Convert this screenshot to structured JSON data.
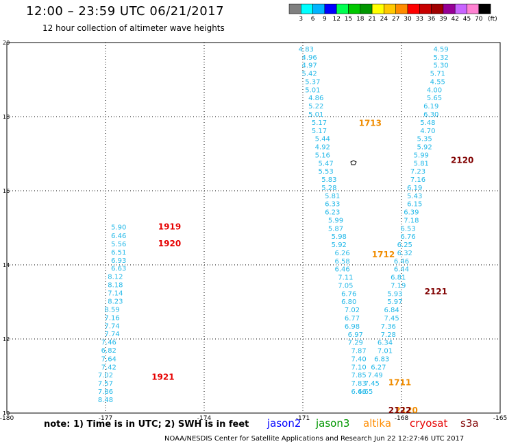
{
  "header": {
    "title": "12:00 – 23:59 UTC 06/21/2017",
    "subtitle": "12 hour collection of altimeter wave heights"
  },
  "colorbar": {
    "unit": "(ft)",
    "colors": [
      "#808080",
      "#00ffff",
      "#00b4ff",
      "#0000ff",
      "#00ff50",
      "#00c800",
      "#009600",
      "#ffff00",
      "#ffc800",
      "#ff8c00",
      "#ff0000",
      "#c80000",
      "#a00000",
      "#960096",
      "#c864ff",
      "#ff82d2",
      "#000000"
    ],
    "labels": [
      "3",
      "6",
      "9",
      "12",
      "15",
      "18",
      "21",
      "24",
      "27",
      "30",
      "33",
      "36",
      "39",
      "42",
      "45",
      "70"
    ]
  },
  "chart_data": {
    "type": "scatter",
    "xlim": [
      -180,
      -165
    ],
    "ylim": [
      10,
      20
    ],
    "x_ticks": [
      "-180",
      "-177",
      "-174",
      "-171",
      "-168",
      "-165"
    ],
    "y_ticks": [
      "10",
      "12",
      "14",
      "16",
      "18",
      "20"
    ],
    "grid": true,
    "series": [
      {
        "name": "cryosat",
        "color": "#22b8e8",
        "points": [
          {
            "x": -176.6,
            "y": 14.95,
            "v": "5.90"
          },
          {
            "x": -176.6,
            "y": 14.72,
            "v": "6.46"
          },
          {
            "x": -176.6,
            "y": 14.5,
            "v": "5.56"
          },
          {
            "x": -176.6,
            "y": 14.28,
            "v": "6.51"
          },
          {
            "x": -176.6,
            "y": 14.06,
            "v": "6.93"
          },
          {
            "x": -176.6,
            "y": 13.84,
            "v": "6.63"
          },
          {
            "x": -176.7,
            "y": 13.62,
            "v": "8.12"
          },
          {
            "x": -176.7,
            "y": 13.4,
            "v": "8.18"
          },
          {
            "x": -176.7,
            "y": 13.18,
            "v": "7.14"
          },
          {
            "x": -176.7,
            "y": 12.95,
            "v": "8.23"
          },
          {
            "x": -176.8,
            "y": 12.73,
            "v": "8.59"
          },
          {
            "x": -176.8,
            "y": 12.51,
            "v": "7.16"
          },
          {
            "x": -176.8,
            "y": 12.29,
            "v": "7.74"
          },
          {
            "x": -176.8,
            "y": 12.07,
            "v": "7.74"
          },
          {
            "x": -176.9,
            "y": 11.85,
            "v": "7.46"
          },
          {
            "x": -176.9,
            "y": 11.63,
            "v": "6.82"
          },
          {
            "x": -176.9,
            "y": 11.4,
            "v": "7.64"
          },
          {
            "x": -176.9,
            "y": 11.18,
            "v": "7.42"
          },
          {
            "x": -177.0,
            "y": 10.96,
            "v": "7.02"
          },
          {
            "x": -177.0,
            "y": 10.74,
            "v": "7.57"
          },
          {
            "x": -177.0,
            "y": 10.52,
            "v": "7.86"
          },
          {
            "x": -177.0,
            "y": 10.3,
            "v": "8.48"
          },
          {
            "x": -170.9,
            "y": 19.76,
            "v": "4.83"
          },
          {
            "x": -170.8,
            "y": 19.54,
            "v": "4.96"
          },
          {
            "x": -170.8,
            "y": 19.32,
            "v": "4.97"
          },
          {
            "x": -170.8,
            "y": 19.1,
            "v": "5.42"
          },
          {
            "x": -170.7,
            "y": 18.88,
            "v": "5.37"
          },
          {
            "x": -170.7,
            "y": 18.66,
            "v": "5.01"
          },
          {
            "x": -170.6,
            "y": 18.44,
            "v": "4.86"
          },
          {
            "x": -170.6,
            "y": 18.22,
            "v": "5.22"
          },
          {
            "x": -170.6,
            "y": 18.0,
            "v": "5.01"
          },
          {
            "x": -170.5,
            "y": 17.78,
            "v": "5.17"
          },
          {
            "x": -170.5,
            "y": 17.56,
            "v": "5.17"
          },
          {
            "x": -170.4,
            "y": 17.34,
            "v": "5.44"
          },
          {
            "x": -170.4,
            "y": 17.12,
            "v": "4.92"
          },
          {
            "x": -170.4,
            "y": 16.9,
            "v": "5.16"
          },
          {
            "x": -170.3,
            "y": 16.68,
            "v": "5.47"
          },
          {
            "x": -170.3,
            "y": 16.46,
            "v": "5.53"
          },
          {
            "x": -170.2,
            "y": 16.24,
            "v": "5.83"
          },
          {
            "x": -170.2,
            "y": 16.02,
            "v": "5.28"
          },
          {
            "x": -170.1,
            "y": 15.8,
            "v": "5.81"
          },
          {
            "x": -170.1,
            "y": 15.58,
            "v": "6.33"
          },
          {
            "x": -170.1,
            "y": 15.36,
            "v": "6.23"
          },
          {
            "x": -170.0,
            "y": 15.14,
            "v": "5.99"
          },
          {
            "x": -170.0,
            "y": 14.92,
            "v": "5.87"
          },
          {
            "x": -169.9,
            "y": 14.7,
            "v": "5.98"
          },
          {
            "x": -169.9,
            "y": 14.48,
            "v": "5.92"
          },
          {
            "x": -169.8,
            "y": 14.26,
            "v": "6.26"
          },
          {
            "x": -169.8,
            "y": 14.04,
            "v": "6.58"
          },
          {
            "x": -169.8,
            "y": 13.82,
            "v": "6.46"
          },
          {
            "x": -169.7,
            "y": 13.6,
            "v": "7.11"
          },
          {
            "x": -169.7,
            "y": 13.38,
            "v": "7.05"
          },
          {
            "x": -169.6,
            "y": 13.16,
            "v": "6.76"
          },
          {
            "x": -169.6,
            "y": 12.94,
            "v": "6.80"
          },
          {
            "x": -169.5,
            "y": 12.72,
            "v": "7.02"
          },
          {
            "x": -169.5,
            "y": 12.5,
            "v": "6.77"
          },
          {
            "x": -169.5,
            "y": 12.28,
            "v": "6.98"
          },
          {
            "x": -169.4,
            "y": 12.06,
            "v": "6.97"
          },
          {
            "x": -169.4,
            "y": 11.84,
            "v": "7.29"
          },
          {
            "x": -169.3,
            "y": 11.62,
            "v": "7.87"
          },
          {
            "x": -169.3,
            "y": 11.4,
            "v": "7.40"
          },
          {
            "x": -169.3,
            "y": 11.18,
            "v": "7.10"
          },
          {
            "x": -169.3,
            "y": 10.96,
            "v": "7.85"
          },
          {
            "x": -169.3,
            "y": 10.74,
            "v": "7.83"
          },
          {
            "x": -169.3,
            "y": 10.52,
            "v": "6.46"
          },
          {
            "x": -169.1,
            "y": 10.52,
            "v": "6.65"
          },
          {
            "x": -166.8,
            "y": 19.76,
            "v": "4.59"
          },
          {
            "x": -166.8,
            "y": 19.54,
            "v": "5.32"
          },
          {
            "x": -166.8,
            "y": 19.32,
            "v": "5.30"
          },
          {
            "x": -166.9,
            "y": 19.1,
            "v": "5.71"
          },
          {
            "x": -166.9,
            "y": 18.88,
            "v": "4.55"
          },
          {
            "x": -167.0,
            "y": 18.66,
            "v": "4.00"
          },
          {
            "x": -167.0,
            "y": 18.44,
            "v": "5.65"
          },
          {
            "x": -167.1,
            "y": 18.22,
            "v": "6.19"
          },
          {
            "x": -167.1,
            "y": 18.0,
            "v": "6.30"
          },
          {
            "x": -167.2,
            "y": 17.78,
            "v": "5.48"
          },
          {
            "x": -167.2,
            "y": 17.56,
            "v": "4.70"
          },
          {
            "x": -167.3,
            "y": 17.34,
            "v": "5.35"
          },
          {
            "x": -167.3,
            "y": 17.12,
            "v": "5.92"
          },
          {
            "x": -167.4,
            "y": 16.9,
            "v": "5.99"
          },
          {
            "x": -167.4,
            "y": 16.68,
            "v": "5.81"
          },
          {
            "x": -167.5,
            "y": 16.46,
            "v": "7.23"
          },
          {
            "x": -167.5,
            "y": 16.24,
            "v": "7.16"
          },
          {
            "x": -167.6,
            "y": 16.02,
            "v": "6.19"
          },
          {
            "x": -167.6,
            "y": 15.8,
            "v": "5.43"
          },
          {
            "x": -167.6,
            "y": 15.58,
            "v": "6.15"
          },
          {
            "x": -167.7,
            "y": 15.36,
            "v": "6.39"
          },
          {
            "x": -167.7,
            "y": 15.14,
            "v": "7.18"
          },
          {
            "x": -167.8,
            "y": 14.92,
            "v": "6.53"
          },
          {
            "x": -167.8,
            "y": 14.7,
            "v": "6.76"
          },
          {
            "x": -167.9,
            "y": 14.48,
            "v": "6.25"
          },
          {
            "x": -167.9,
            "y": 14.26,
            "v": "6.32"
          },
          {
            "x": -168.0,
            "y": 14.04,
            "v": "6.46"
          },
          {
            "x": -168.0,
            "y": 13.82,
            "v": "6.44"
          },
          {
            "x": -168.1,
            "y": 13.6,
            "v": "6.81"
          },
          {
            "x": -168.1,
            "y": 13.38,
            "v": "7.19"
          },
          {
            "x": -168.2,
            "y": 13.16,
            "v": "5.93"
          },
          {
            "x": -168.2,
            "y": 12.94,
            "v": "5.97"
          },
          {
            "x": -168.3,
            "y": 12.72,
            "v": "6.84"
          },
          {
            "x": -168.3,
            "y": 12.5,
            "v": "7.45"
          },
          {
            "x": -168.4,
            "y": 12.28,
            "v": "7.36"
          },
          {
            "x": -168.4,
            "y": 12.06,
            "v": "7.28"
          },
          {
            "x": -168.5,
            "y": 11.84,
            "v": "6.34"
          },
          {
            "x": -168.5,
            "y": 11.62,
            "v": "7.01"
          },
          {
            "x": -168.6,
            "y": 11.4,
            "v": "6.83"
          },
          {
            "x": -168.7,
            "y": 11.18,
            "v": "6.27"
          },
          {
            "x": -168.8,
            "y": 10.96,
            "v": "7.49"
          },
          {
            "x": -168.9,
            "y": 10.74,
            "v": "7.45"
          }
        ]
      }
    ],
    "time_labels": [
      {
        "x": -175.4,
        "y": 14.95,
        "text": "1919",
        "color": "#e60000"
      },
      {
        "x": -175.4,
        "y": 14.5,
        "text": "1920",
        "color": "#e60000"
      },
      {
        "x": -175.6,
        "y": 10.9,
        "text": "1921",
        "color": "#e60000"
      },
      {
        "x": -169.3,
        "y": 17.75,
        "text": "1713",
        "color": "#f08c00"
      },
      {
        "x": -168.9,
        "y": 14.2,
        "text": "1712",
        "color": "#f08c00"
      },
      {
        "x": -168.4,
        "y": 10.75,
        "text": "1711",
        "color": "#f08c00"
      },
      {
        "x": -168.2,
        "y": 10.0,
        "text": "2120",
        "color": "#f08c00"
      },
      {
        "x": -168.4,
        "y": 10.0,
        "text": "2122",
        "color": "#800000"
      },
      {
        "x": -166.5,
        "y": 16.75,
        "text": "2120",
        "color": "#800000"
      },
      {
        "x": -167.3,
        "y": 13.2,
        "text": "2121",
        "color": "#800000"
      }
    ]
  },
  "footer": {
    "note": "note:  1) Time is in UTC;  2) SWH is in feet",
    "missions": [
      {
        "name": "jason2",
        "color": "#0000ff"
      },
      {
        "name": "jason3",
        "color": "#009600"
      },
      {
        "name": "altika",
        "color": "#ff8c00"
      },
      {
        "name": "cryosat",
        "color": "#e60000"
      },
      {
        "name": "s3a",
        "color": "#800000"
      }
    ],
    "credit": "NOAA/NESDIS Center for Satellite Applications and Research    Jun 22 12:27:46 UTC 2017"
  }
}
